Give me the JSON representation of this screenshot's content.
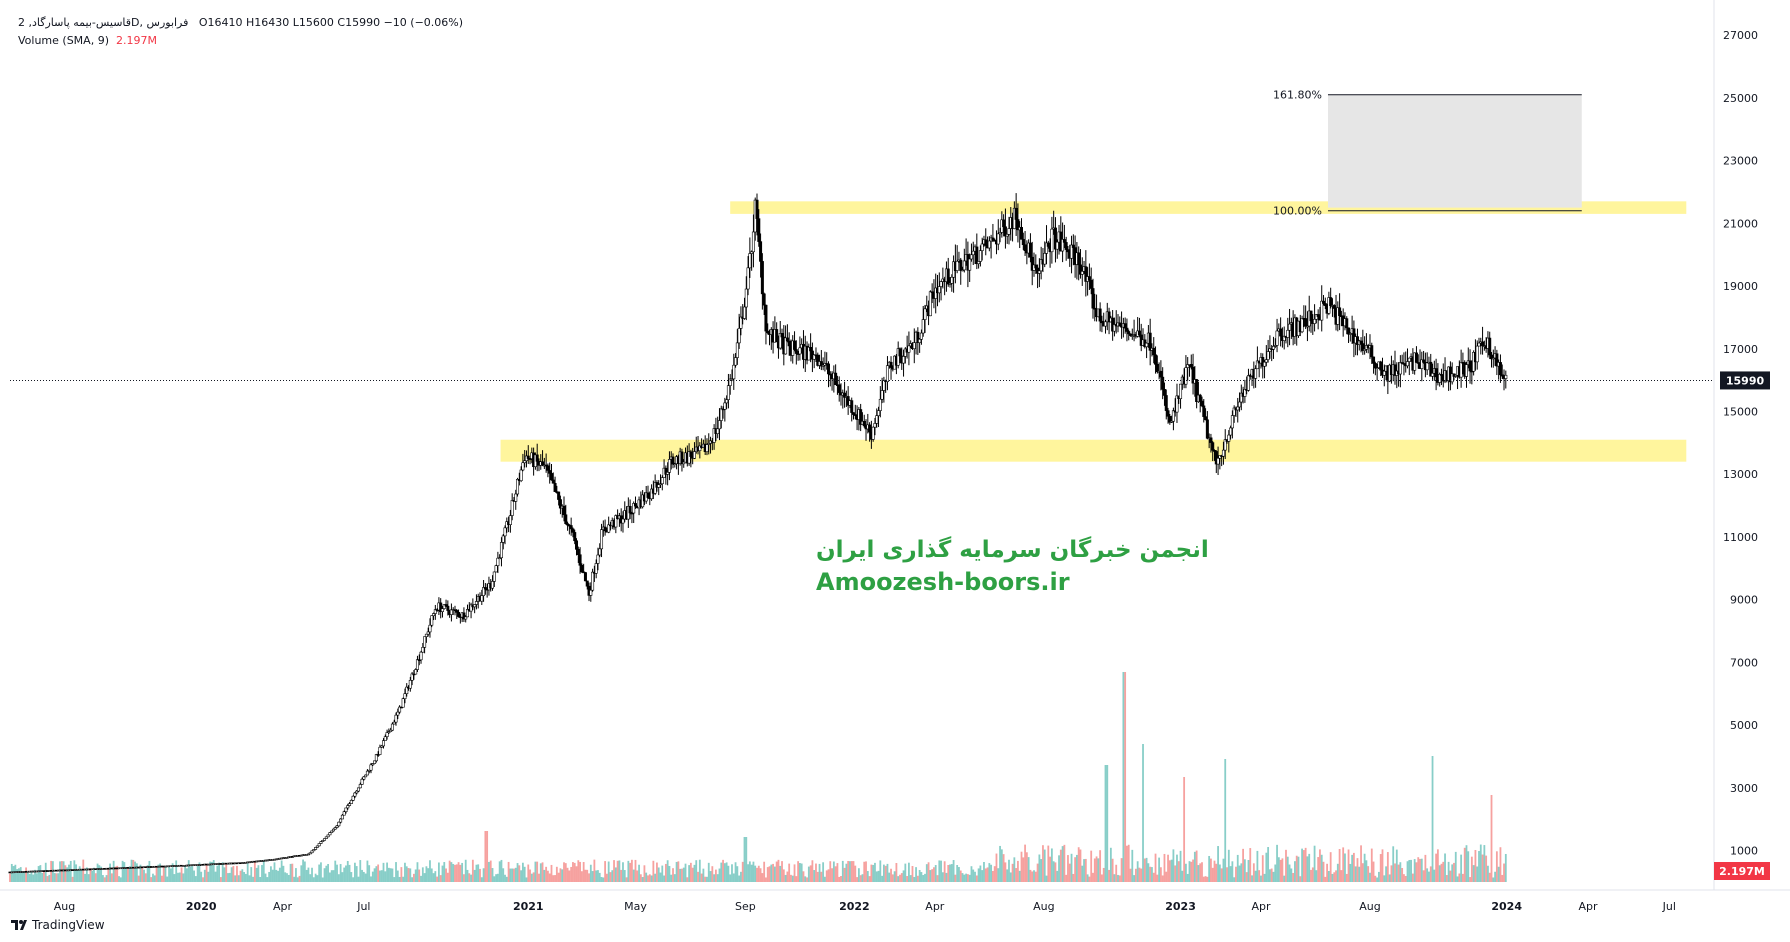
{
  "header": {
    "symbol_line": "قاسیس-بیمه پاسارگاد, 2D, فرابورس",
    "ohlc": "O16410  H16430  L15600  C15990  −10 (−0.06%)",
    "volume_label": "Volume (SMA, 9)",
    "volume_value": "2.197M"
  },
  "brand": {
    "name": "TradingView"
  },
  "watermark": {
    "line1": "انجمن خبرگان سرمایه گذاری ایران",
    "line2": "Amoozesh-boors.ir"
  },
  "colors": {
    "up": "#26a69a",
    "down": "#ef5350",
    "candle": "#000000",
    "zone": "#fff59d",
    "fib_box": "#e6e6e6",
    "watermark": "#2ea043"
  },
  "chart_data": {
    "type": "candlestick",
    "title": "",
    "xlabel": "",
    "ylabel": "",
    "ylim": [
      0,
      27800
    ],
    "yticks": [
      1000,
      3000,
      5000,
      7000,
      9000,
      11000,
      13000,
      15000,
      17000,
      19000,
      21000,
      23000,
      25000,
      27000
    ],
    "ytick_labels": [
      "1000",
      "3000",
      "5000",
      "7000",
      "9000",
      "11000",
      "13000",
      "15000",
      "17000",
      "19000",
      "21000",
      "23000",
      "25000",
      "27000"
    ],
    "x_range": [
      "2019-06-01",
      "2024-08-20"
    ],
    "xticks": [
      {
        "date": "2019-08-01",
        "label": "Aug"
      },
      {
        "date": "2020-01-01",
        "label": "2020"
      },
      {
        "date": "2020-04-01",
        "label": "Apr"
      },
      {
        "date": "2020-07-01",
        "label": "Jul"
      },
      {
        "date": "2021-01-01",
        "label": "2021"
      },
      {
        "date": "2021-05-01",
        "label": "May"
      },
      {
        "date": "2021-09-01",
        "label": "Sep"
      },
      {
        "date": "2022-01-01",
        "label": "2022"
      },
      {
        "date": "2022-04-01",
        "label": "Apr"
      },
      {
        "date": "2022-08-01",
        "label": "Aug"
      },
      {
        "date": "2023-01-01",
        "label": "2023"
      },
      {
        "date": "2023-04-01",
        "label": "Apr"
      },
      {
        "date": "2023-08-01",
        "label": "Aug"
      },
      {
        "date": "2024-01-01",
        "label": "2024"
      },
      {
        "date": "2024-04-01",
        "label": "Apr"
      },
      {
        "date": "2024-07-01",
        "label": "Jul"
      }
    ],
    "last_price": 15990,
    "last_price_label": "15990",
    "volume_sma_label": "2.197M",
    "volume_max": 7000000,
    "zones": [
      {
        "from": "2021-08-15",
        "to": "2024-07-20",
        "low": 21300,
        "high": 21700
      },
      {
        "from": "2020-12-01",
        "to": "2024-07-20",
        "low": 13400,
        "high": 14100
      }
    ],
    "fib_box": {
      "from": "2023-06-15",
      "to": "2024-03-25",
      "low": 21500,
      "high": 25100
    },
    "fib_levels": [
      {
        "label": "161.80%",
        "value": 25100
      },
      {
        "label": "100.00%",
        "value": 21400
      }
    ],
    "price_path": [
      [
        "2019-06-01",
        320
      ],
      [
        "2019-09-01",
        420
      ],
      [
        "2019-12-01",
        520
      ],
      [
        "2020-02-15",
        620
      ],
      [
        "2020-03-15",
        700
      ],
      [
        "2020-05-01",
        900
      ],
      [
        "2020-06-01",
        1800
      ],
      [
        "2020-06-20",
        2800
      ],
      [
        "2020-07-15",
        4000
      ],
      [
        "2020-08-10",
        5500
      ],
      [
        "2020-09-01",
        7200
      ],
      [
        "2020-09-20",
        8800
      ],
      [
        "2020-10-20",
        8500
      ],
      [
        "2020-11-20",
        9500
      ],
      [
        "2020-12-10",
        11500
      ],
      [
        "2020-12-28",
        13600
      ],
      [
        "2021-01-20",
        13200
      ],
      [
        "2021-02-20",
        11000
      ],
      [
        "2021-03-10",
        9200
      ],
      [
        "2021-03-25",
        11200
      ],
      [
        "2021-04-20",
        11700
      ],
      [
        "2021-05-20",
        12500
      ],
      [
        "2021-06-10",
        13400
      ],
      [
        "2021-07-15",
        13700
      ],
      [
        "2021-08-01",
        14500
      ],
      [
        "2021-08-20",
        16500
      ],
      [
        "2021-09-05",
        19500
      ],
      [
        "2021-09-12",
        21500
      ],
      [
        "2021-09-25",
        17500
      ],
      [
        "2021-10-20",
        17000
      ],
      [
        "2021-11-20",
        16800
      ],
      [
        "2021-12-20",
        15500
      ],
      [
        "2022-01-20",
        14300
      ],
      [
        "2022-02-10",
        16500
      ],
      [
        "2022-03-10",
        17200
      ],
      [
        "2022-04-01",
        18900
      ],
      [
        "2022-05-01",
        19700
      ],
      [
        "2022-06-01",
        20300
      ],
      [
        "2022-07-01",
        21300
      ],
      [
        "2022-07-25",
        19200
      ],
      [
        "2022-08-10",
        20600
      ],
      [
        "2022-09-10",
        19800
      ],
      [
        "2022-10-01",
        18000
      ],
      [
        "2022-11-01",
        17600
      ],
      [
        "2022-12-01",
        17200
      ],
      [
        "2022-12-20",
        14500
      ],
      [
        "2023-01-10",
        16500
      ],
      [
        "2023-02-10",
        13300
      ],
      [
        "2023-03-10",
        15500
      ],
      [
        "2023-04-20",
        17500
      ],
      [
        "2023-05-20",
        17800
      ],
      [
        "2023-06-15",
        18400
      ],
      [
        "2023-07-20",
        17200
      ],
      [
        "2023-08-20",
        16200
      ],
      [
        "2023-09-20",
        16600
      ],
      [
        "2023-10-20",
        16100
      ],
      [
        "2023-11-20",
        16400
      ],
      [
        "2023-12-10",
        17300
      ],
      [
        "2023-12-25",
        16200
      ],
      [
        "2023-12-31",
        15990
      ]
    ],
    "volume_spikes": [
      [
        "2020-11-15",
        1700000
      ],
      [
        "2021-09-01",
        1500000
      ],
      [
        "2022-10-10",
        3900000
      ],
      [
        "2022-10-30",
        7000000
      ],
      [
        "2022-11-20",
        4600000
      ],
      [
        "2023-01-05",
        3500000
      ],
      [
        "2023-02-20",
        4100000
      ],
      [
        "2023-10-10",
        4200000
      ],
      [
        "2023-12-15",
        2900000
      ]
    ]
  }
}
